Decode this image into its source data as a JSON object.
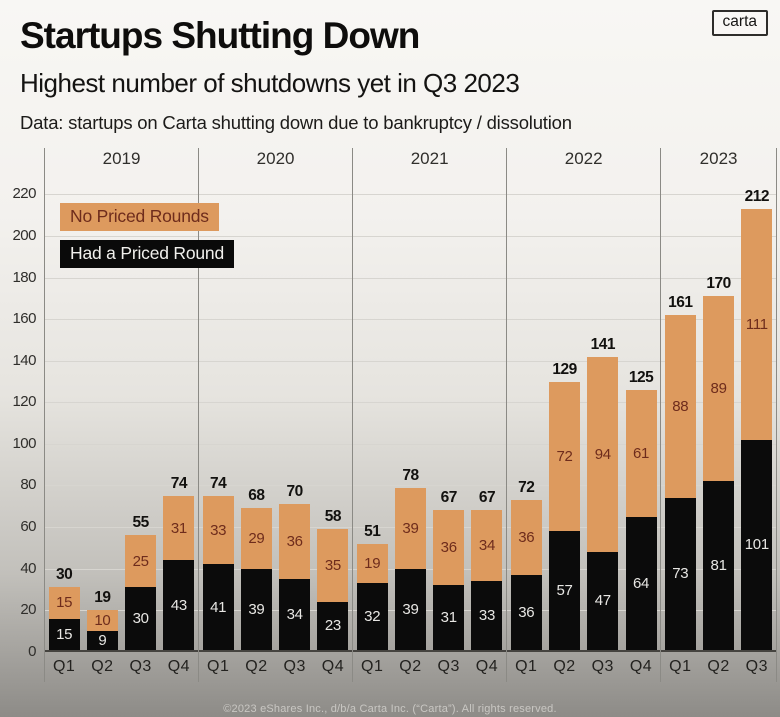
{
  "header": {
    "title": "Startups Shutting Down",
    "subtitle": "Highest number of shutdowns yet in Q3 2023",
    "note": "Data: startups on Carta shutting down due to bankruptcy / dissolution",
    "logo_text": "carta"
  },
  "legend": {
    "no_priced_label": "No Priced Rounds",
    "had_priced_label": "Had a Priced Round"
  },
  "footer": {
    "copyright": "©2023 eShares Inc., d/b/a Carta Inc. (“Carta”). All rights reserved."
  },
  "chart_data": {
    "type": "bar",
    "stacked": true,
    "title": "Startups Shutting Down",
    "subtitle": "Highest number of shutdowns yet in Q3 2023",
    "xlabel": "",
    "ylabel": "",
    "ylim": [
      0,
      230
    ],
    "y_ticks": [
      0,
      20,
      40,
      60,
      80,
      100,
      120,
      140,
      160,
      180,
      200,
      220
    ],
    "grid": true,
    "legend_position": "top-left",
    "legend_entries": [
      "No Priced Rounds",
      "Had a Priced Round"
    ],
    "colors": {
      "no_priced": "#DD9A5E",
      "had_priced": "#0B0B0B",
      "no_priced_text": "#6E2C1C",
      "had_priced_text": "#E8E7E4"
    },
    "series_order_bottom_to_top": [
      "had_priced",
      "no_priced"
    ],
    "groups": [
      {
        "year": "2019",
        "quarters": [
          "Q1",
          "Q2",
          "Q3",
          "Q4"
        ],
        "had_priced": [
          15,
          9,
          30,
          43
        ],
        "no_priced": [
          15,
          10,
          25,
          31
        ],
        "totals": [
          30,
          19,
          55,
          74
        ]
      },
      {
        "year": "2020",
        "quarters": [
          "Q1",
          "Q2",
          "Q3",
          "Q4"
        ],
        "had_priced": [
          41,
          39,
          34,
          23
        ],
        "no_priced": [
          33,
          29,
          36,
          35
        ],
        "totals": [
          74,
          68,
          70,
          58
        ]
      },
      {
        "year": "2021",
        "quarters": [
          "Q1",
          "Q2",
          "Q3",
          "Q4"
        ],
        "had_priced": [
          32,
          39,
          31,
          33
        ],
        "no_priced": [
          19,
          39,
          36,
          34
        ],
        "totals": [
          51,
          78,
          67,
          67
        ]
      },
      {
        "year": "2022",
        "quarters": [
          "Q1",
          "Q2",
          "Q3",
          "Q4"
        ],
        "had_priced": [
          36,
          57,
          47,
          64
        ],
        "no_priced": [
          36,
          72,
          94,
          61
        ],
        "totals": [
          72,
          129,
          141,
          125
        ]
      },
      {
        "year": "2023",
        "quarters": [
          "Q1",
          "Q2",
          "Q3"
        ],
        "had_priced": [
          73,
          81,
          101
        ],
        "no_priced": [
          88,
          89,
          111
        ],
        "totals": [
          161,
          170,
          212
        ]
      }
    ]
  }
}
